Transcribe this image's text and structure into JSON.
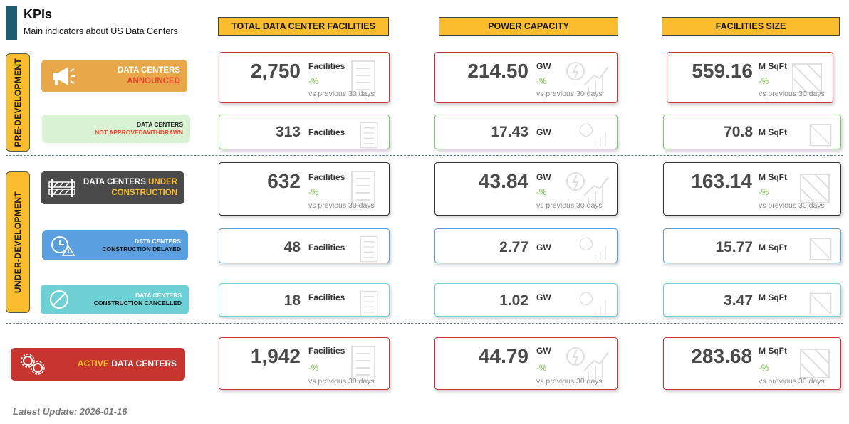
{
  "header": {
    "title": "KPIs",
    "subtitle": "Main indicators about US Data Centers"
  },
  "columns": [
    "TOTAL DATA CENTER FACILITIES",
    "POWER CAPACITY",
    "FACILITIES SIZE"
  ],
  "sections": {
    "pre": "PRE-DEVELOPMENT",
    "under": "UNDER-DEVELOPMENT"
  },
  "colors": {
    "accent": "#fbbd2e",
    "announced": "#e8a84a",
    "not_approved": "#d9f2d3",
    "construction": "#4a4a4a",
    "delayed": "#5aa0e0",
    "cancelled": "#6cd0d4",
    "active": "#c8342e"
  },
  "rows": [
    {
      "label_a": "DATA CENTERS",
      "label_b": "ANNOUNCED",
      "icon": "megaphone-icon",
      "facilities": {
        "value": "2,750",
        "unit": "Facilities",
        "pct": "-%",
        "vs": "vs previous 30 days"
      },
      "power": {
        "value": "214.50",
        "unit": "GW",
        "pct": "-%",
        "vs": "vs previous 30 days"
      },
      "size": {
        "value": "559.16",
        "unit": "M SqFt",
        "pct": "-%",
        "vs": "vs previous 30 days"
      }
    },
    {
      "label_a": "DATA CENTERS",
      "label_b": "NOT APPROVED/WITHDRAWN",
      "icon": "",
      "facilities": {
        "value": "313",
        "unit": "Facilities"
      },
      "power": {
        "value": "17.43",
        "unit": "GW"
      },
      "size": {
        "value": "70.8",
        "unit": "M SqFt"
      }
    },
    {
      "label_a": "DATA CENTERS ",
      "label_hl": "UNDER",
      "label_b": "CONSTRUCTION",
      "icon": "barrier-icon",
      "facilities": {
        "value": "632",
        "unit": "Facilities",
        "pct": "-%",
        "vs": "vs previous 30 days"
      },
      "power": {
        "value": "43.84",
        "unit": "GW",
        "pct": "-%",
        "vs": "vs previous 30 days"
      },
      "size": {
        "value": "163.14",
        "unit": "M SqFt",
        "pct": "-%",
        "vs": "vs previous 30 days"
      }
    },
    {
      "label_a": "DATA CENTERS",
      "label_b": "CONSTRUCTION DELAYED",
      "icon": "clock-warning-icon",
      "facilities": {
        "value": "48",
        "unit": "Facilities"
      },
      "power": {
        "value": "2.77",
        "unit": "GW"
      },
      "size": {
        "value": "15.77",
        "unit": "M SqFt"
      }
    },
    {
      "label_a": "DATA CENTERS",
      "label_b": "CONSTRUCTION CANCELLED",
      "icon": "cancel-icon",
      "facilities": {
        "value": "18",
        "unit": "Facilities"
      },
      "power": {
        "value": "1.02",
        "unit": "GW"
      },
      "size": {
        "value": "3.47",
        "unit": "M SqFt"
      }
    },
    {
      "label_hl": "ACTIVE",
      "label_a": " DATA CENTERS",
      "icon": "gears-icon",
      "facilities": {
        "value": "1,942",
        "unit": "Facilities",
        "pct": "-%",
        "vs": "vs previous 30 days"
      },
      "power": {
        "value": "44.79",
        "unit": "GW",
        "pct": "-%",
        "vs": "vs previous 30 days"
      },
      "size": {
        "value": "283.68",
        "unit": "M SqFt",
        "pct": "-%",
        "vs": "vs previous 30 days"
      }
    }
  ],
  "footer": {
    "latest_update": "Latest Update: 2026-01-16"
  }
}
